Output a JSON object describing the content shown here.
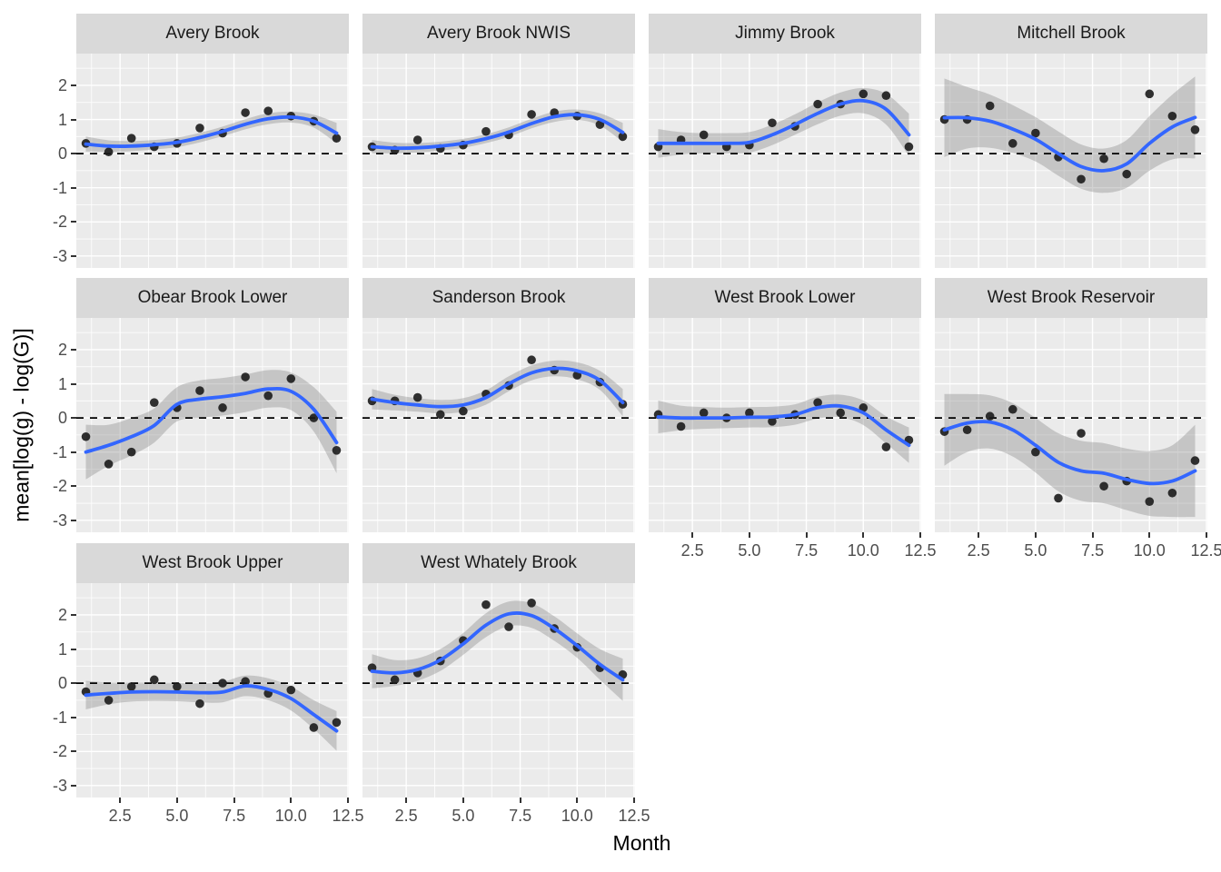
{
  "figure": {
    "x_axis_title": "Month",
    "y_axis_title": "mean[log(g) - log(G)]"
  },
  "colors": {
    "smooth_line": "#3366FF",
    "point": "#1B1B1B",
    "ribbon": "#7F7F7F",
    "ribbon_opacity": 0.35,
    "panel_bg": "#EBEBEB",
    "strip_bg": "#D9D9D9",
    "grid": "#FFFFFF",
    "zero_line": "#000000",
    "tick_label": "#4D4D4D",
    "tick_mark": "#333333"
  },
  "chart_data": {
    "type": "line",
    "xlabel": "Month",
    "ylabel": "mean[log(g) - log(G)]",
    "months": [
      1,
      2,
      3,
      4,
      5,
      6,
      7,
      8,
      9,
      10,
      11,
      12
    ],
    "x_ticks": [
      2.5,
      5.0,
      7.5,
      10.0,
      12.5
    ],
    "x_tick_labels": [
      "2.5",
      "5.0",
      "7.5",
      "10.0",
      "12.5"
    ],
    "y_ticks": [
      2,
      1,
      0,
      -1,
      -2,
      -3
    ],
    "y_tick_labels": [
      "2",
      "1",
      "0",
      "-1",
      "-2",
      "-3"
    ],
    "x_minor_ticks": [
      1.25,
      3.75,
      6.25,
      8.75,
      11.25
    ],
    "y_minor_ticks": [
      2.5,
      1.5,
      0.5,
      -0.5,
      -1.5,
      -2.5
    ],
    "xlim": [
      0.58,
      12.54
    ],
    "ylim": [
      -3.35,
      2.93
    ],
    "zero_line": 0,
    "grid": true,
    "legend": "none",
    "facets": [
      {
        "title": "Avery Brook",
        "row": 0,
        "col": 0,
        "points": [
          0.3,
          0.05,
          0.45,
          0.2,
          0.3,
          0.75,
          0.6,
          1.2,
          1.25,
          1.1,
          0.95,
          0.45
        ],
        "smooth": [
          0.28,
          0.22,
          0.22,
          0.26,
          0.33,
          0.47,
          0.65,
          0.86,
          1.02,
          1.07,
          0.95,
          0.6
        ],
        "ci": [
          0.22,
          0.17,
          0.15,
          0.14,
          0.14,
          0.14,
          0.14,
          0.15,
          0.16,
          0.16,
          0.19,
          0.3
        ]
      },
      {
        "title": "Avery Brook NWIS",
        "row": 0,
        "col": 1,
        "points": [
          0.2,
          0.1,
          0.4,
          0.15,
          0.25,
          0.65,
          0.55,
          1.15,
          1.2,
          1.1,
          0.85,
          0.5
        ],
        "smooth": [
          0.2,
          0.16,
          0.17,
          0.22,
          0.3,
          0.44,
          0.63,
          0.88,
          1.08,
          1.14,
          1.0,
          0.62
        ],
        "ci": [
          0.2,
          0.16,
          0.14,
          0.13,
          0.13,
          0.13,
          0.14,
          0.14,
          0.15,
          0.15,
          0.18,
          0.28
        ]
      },
      {
        "title": "Jimmy Brook",
        "row": 0,
        "col": 2,
        "points": [
          0.2,
          0.4,
          0.55,
          0.2,
          0.25,
          0.9,
          0.8,
          1.45,
          1.45,
          1.75,
          1.7,
          0.2
        ],
        "smooth": [
          0.3,
          0.3,
          0.3,
          0.3,
          0.33,
          0.55,
          0.85,
          1.18,
          1.45,
          1.55,
          1.3,
          0.55
        ],
        "ci": [
          0.42,
          0.33,
          0.3,
          0.3,
          0.3,
          0.3,
          0.3,
          0.32,
          0.34,
          0.37,
          0.45,
          0.62
        ]
      },
      {
        "title": "Mitchell Brook",
        "row": 0,
        "col": 3,
        "points": [
          1.0,
          1.0,
          1.4,
          0.3,
          0.6,
          -0.1,
          -0.75,
          -0.15,
          -0.6,
          1.75,
          1.1,
          0.7
        ],
        "smooth": [
          1.05,
          1.05,
          0.95,
          0.72,
          0.42,
          0.0,
          -0.38,
          -0.5,
          -0.3,
          0.3,
          0.78,
          1.06
        ],
        "ci": [
          1.15,
          0.9,
          0.78,
          0.7,
          0.65,
          0.65,
          0.65,
          0.65,
          0.7,
          0.8,
          0.95,
          1.2
        ]
      },
      {
        "title": "Obear Brook Lower",
        "row": 1,
        "col": 0,
        "points": [
          -0.55,
          -1.35,
          -1.0,
          0.45,
          0.3,
          0.8,
          0.3,
          1.2,
          0.65,
          1.15,
          0.0,
          -0.95
        ],
        "smooth": [
          -1.0,
          -0.8,
          -0.55,
          -0.22,
          0.4,
          0.55,
          0.62,
          0.72,
          0.85,
          0.78,
          0.25,
          -0.72
        ],
        "ci": [
          0.8,
          0.6,
          0.55,
          0.5,
          0.5,
          0.55,
          0.55,
          0.55,
          0.55,
          0.55,
          0.65,
          0.9
        ]
      },
      {
        "title": "Sanderson Brook",
        "row": 1,
        "col": 1,
        "points": [
          0.5,
          0.5,
          0.6,
          0.1,
          0.2,
          0.7,
          0.95,
          1.7,
          1.4,
          1.25,
          1.05,
          0.4
        ],
        "smooth": [
          0.55,
          0.45,
          0.38,
          0.33,
          0.38,
          0.6,
          1.0,
          1.32,
          1.45,
          1.38,
          1.1,
          0.45
        ],
        "ci": [
          0.3,
          0.23,
          0.2,
          0.2,
          0.2,
          0.21,
          0.22,
          0.22,
          0.23,
          0.25,
          0.28,
          0.4
        ]
      },
      {
        "title": "West Brook Lower",
        "row": 1,
        "col": 2,
        "points": [
          0.1,
          -0.25,
          0.15,
          0.0,
          0.15,
          -0.1,
          0.1,
          0.45,
          0.15,
          0.3,
          -0.85,
          -0.65
        ],
        "smooth": [
          0.03,
          0.0,
          0.0,
          0.0,
          0.02,
          0.03,
          0.1,
          0.3,
          0.35,
          0.15,
          -0.35,
          -0.8
        ],
        "ci": [
          0.48,
          0.36,
          0.32,
          0.3,
          0.3,
          0.3,
          0.3,
          0.32,
          0.33,
          0.36,
          0.4,
          0.52
        ]
      },
      {
        "title": "West Brook Reservoir",
        "row": 1,
        "col": 3,
        "points": [
          -0.4,
          -0.35,
          0.05,
          0.25,
          -1.0,
          -2.35,
          -0.45,
          -2.0,
          -1.85,
          -2.45,
          -2.2,
          -1.25
        ],
        "smooth": [
          -0.35,
          -0.15,
          -0.12,
          -0.35,
          -0.8,
          -1.3,
          -1.55,
          -1.62,
          -1.8,
          -1.92,
          -1.85,
          -1.55
        ],
        "ci": [
          1.05,
          0.85,
          0.78,
          0.78,
          0.8,
          0.85,
          0.88,
          0.88,
          0.9,
          0.95,
          1.05,
          1.35
        ]
      },
      {
        "title": "West Brook Upper",
        "row": 2,
        "col": 0,
        "points": [
          -0.25,
          -0.5,
          -0.1,
          0.1,
          -0.1,
          -0.6,
          0.0,
          0.05,
          -0.3,
          -0.2,
          -1.3,
          -1.15
        ],
        "smooth": [
          -0.35,
          -0.3,
          -0.26,
          -0.25,
          -0.26,
          -0.28,
          -0.26,
          -0.08,
          -0.18,
          -0.45,
          -0.92,
          -1.4
        ],
        "ci": [
          0.42,
          0.32,
          0.28,
          0.27,
          0.27,
          0.28,
          0.3,
          0.3,
          0.32,
          0.35,
          0.42,
          0.58
        ]
      },
      {
        "title": "West Whately Brook",
        "row": 2,
        "col": 1,
        "points": [
          0.45,
          0.1,
          0.3,
          0.65,
          1.25,
          2.3,
          1.65,
          2.35,
          1.6,
          1.05,
          0.45,
          0.25
        ],
        "smooth": [
          0.35,
          0.3,
          0.4,
          0.68,
          1.15,
          1.7,
          2.03,
          1.98,
          1.6,
          1.1,
          0.55,
          0.1
        ],
        "ci": [
          0.5,
          0.38,
          0.33,
          0.32,
          0.32,
          0.35,
          0.36,
          0.36,
          0.36,
          0.36,
          0.45,
          0.62
        ]
      }
    ]
  }
}
